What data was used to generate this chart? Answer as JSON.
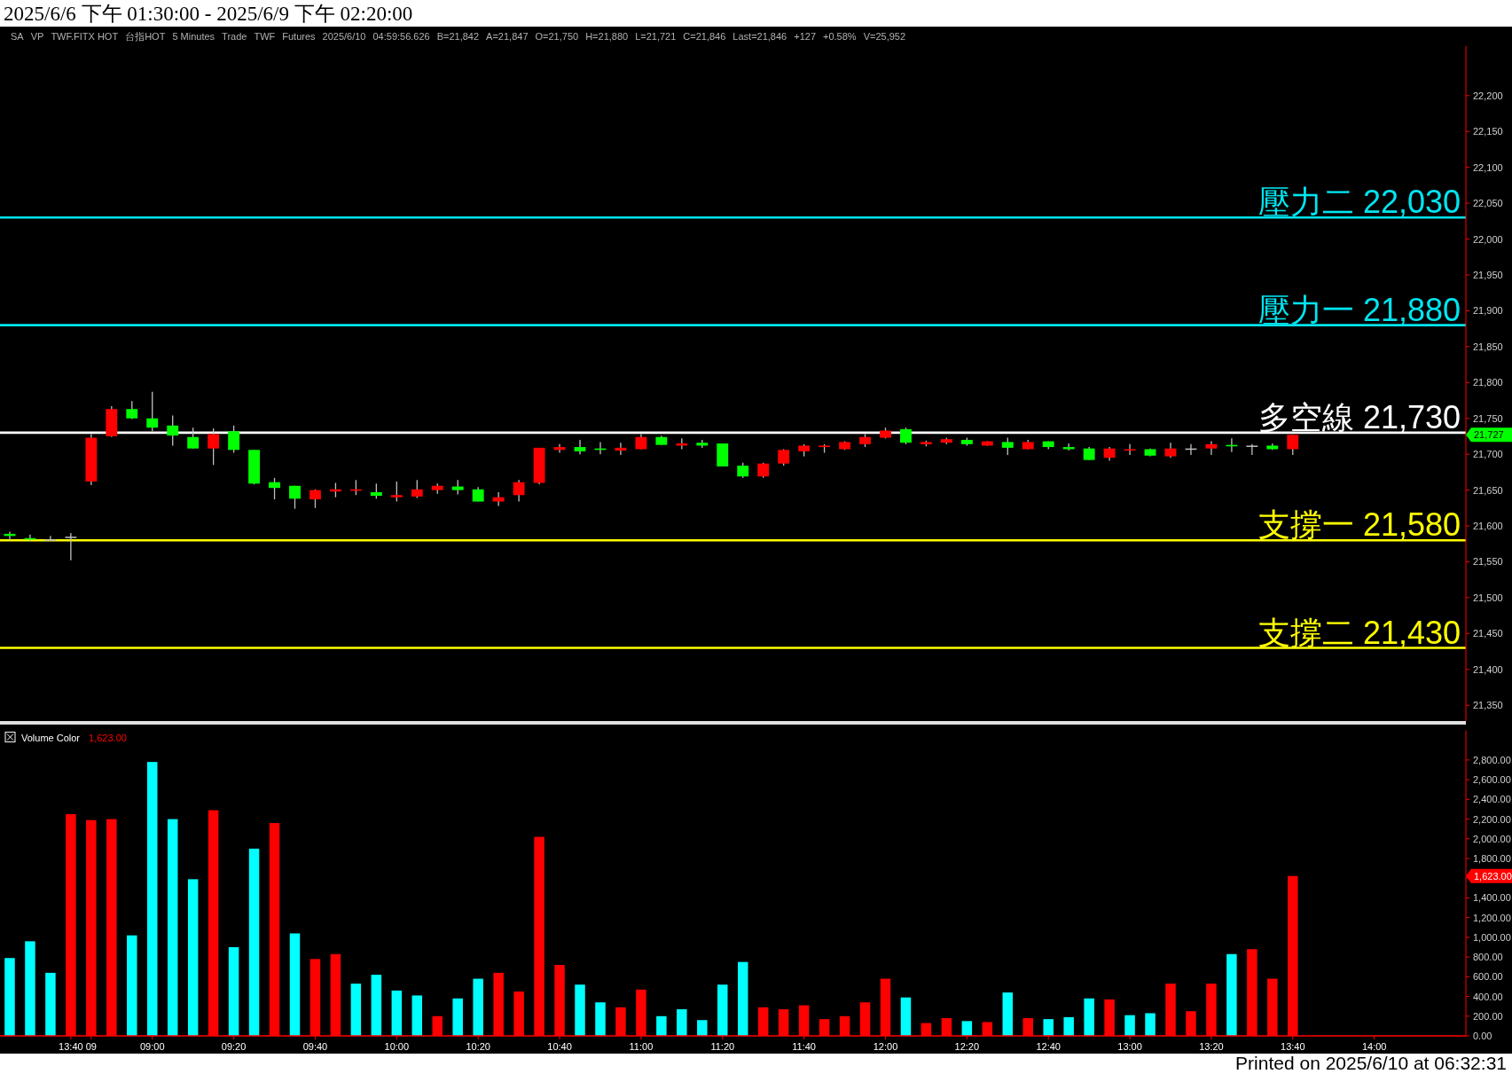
{
  "chart_data": [
    {
      "type": "candlestick",
      "title": "2025/6/6 下午 01:30:00 - 2025/6/9 下午 02:20:00",
      "annotations": [
        "SA",
        "VP",
        "TWF.FITX HOT",
        "台指HOT",
        "5 Minutes",
        "Trade",
        "TWF",
        "Futures",
        "2025/6/10",
        "04:59:56.626",
        "B=21,842",
        "A=21,847",
        "O=21,750",
        "H=21,880",
        "L=21,721",
        "C=21,846",
        "Last=21,846",
        "+127",
        "+0.58%",
        "V=25,952",
        "21,727"
      ],
      "categories": [
        null,
        null,
        null,
        null,
        null,
        null,
        null,
        null,
        null,
        null,
        null,
        null,
        null,
        null,
        null,
        null,
        null,
        null,
        null,
        null,
        null,
        null,
        null,
        null,
        null,
        null,
        null,
        null,
        null,
        null,
        null,
        null,
        null,
        null,
        null,
        null,
        null,
        null,
        null,
        null,
        null,
        null,
        null,
        null,
        null,
        null,
        null,
        null,
        null,
        null,
        null,
        null,
        null,
        null,
        null,
        null,
        null,
        null,
        null,
        null,
        null,
        null,
        null,
        null,
        null,
        null,
        null,
        null,
        null,
        null,
        null,
        null
      ],
      "ohlc": [
        [
          21589,
          21592,
          21580,
          21586
        ],
        [
          21583,
          21588,
          21579,
          21581
        ],
        [
          21581,
          21586,
          21580,
          21581
        ],
        [
          21585,
          21590,
          21552,
          21585
        ],
        [
          21662,
          21728,
          21657,
          21723
        ],
        [
          21725,
          21767,
          21724,
          21763
        ],
        [
          21763,
          21774,
          21749,
          21750
        ],
        [
          21750,
          21787,
          21732,
          21737
        ],
        [
          21740,
          21754,
          21712,
          21726
        ],
        [
          21724,
          21737,
          21708,
          21708
        ],
        [
          21708,
          21736,
          21685,
          21728
        ],
        [
          21732,
          21740,
          21702,
          21706
        ],
        [
          21706,
          21706,
          21658,
          21659
        ],
        [
          21661,
          21667,
          21637,
          21653
        ],
        [
          21656,
          21656,
          21624,
          21638
        ],
        [
          21637,
          21651,
          21625,
          21650
        ],
        [
          21648,
          21660,
          21640,
          21651
        ],
        [
          21649,
          21664,
          21643,
          21651
        ],
        [
          21647,
          21659,
          21638,
          21642
        ],
        [
          21640,
          21662,
          21634,
          21643
        ],
        [
          21641,
          21664,
          21639,
          21651
        ],
        [
          21650,
          21659,
          21645,
          21656
        ],
        [
          21655,
          21664,
          21644,
          21650
        ],
        [
          21651,
          21654,
          21634,
          21634
        ],
        [
          21634,
          21647,
          21628,
          21640
        ],
        [
          21643,
          21664,
          21634,
          21661
        ],
        [
          21660,
          21709,
          21658,
          21709
        ],
        [
          21706,
          21714,
          21702,
          21710
        ],
        [
          21710,
          21720,
          21700,
          21704
        ],
        [
          21708,
          21717,
          21700,
          21706
        ],
        [
          21705,
          21716,
          21699,
          21709
        ],
        [
          21707,
          21728,
          21707,
          21724
        ],
        [
          21724,
          21726,
          21713,
          21713
        ],
        [
          21712,
          21722,
          21707,
          21715
        ],
        [
          21716,
          21720,
          21709,
          21712
        ],
        [
          21715,
          21715,
          21683,
          21683
        ],
        [
          21684,
          21688,
          21667,
          21669
        ],
        [
          21669,
          21688,
          21667,
          21687
        ],
        [
          21687,
          21707,
          21684,
          21706
        ],
        [
          21704,
          21714,
          21697,
          21712
        ],
        [
          21710,
          21714,
          21702,
          21712
        ],
        [
          21707,
          21718,
          21706,
          21717
        ],
        [
          21714,
          21728,
          21710,
          21724
        ],
        [
          21723,
          21737,
          21722,
          21733
        ],
        [
          21735,
          21737,
          21714,
          21716
        ],
        [
          21714,
          21719,
          21711,
          21717
        ],
        [
          21716,
          21723,
          21714,
          21721
        ],
        [
          21720,
          21723,
          21712,
          21714
        ],
        [
          21712,
          21718,
          21712,
          21718
        ],
        [
          21717,
          21723,
          21699,
          21709
        ],
        [
          21707,
          21720,
          21707,
          21717
        ],
        [
          21718,
          21718,
          21707,
          21710
        ],
        [
          21710,
          21715,
          21705,
          21707
        ],
        [
          21708,
          21710,
          21692,
          21692
        ],
        [
          21695,
          21710,
          21691,
          21708
        ],
        [
          21705,
          21714,
          21699,
          21707
        ],
        [
          21707,
          21708,
          21697,
          21698
        ],
        [
          21697,
          21716,
          21695,
          21708
        ],
        [
          21708,
          21714,
          21699,
          21708
        ],
        [
          21708,
          21718,
          21699,
          21714
        ],
        [
          21713,
          21722,
          21703,
          21711
        ],
        [
          21712,
          21714,
          21699,
          21712
        ],
        [
          21712,
          21715,
          21706,
          21707
        ],
        [
          21707,
          21727,
          21699,
          21727
        ],
        null,
        null,
        null,
        null,
        null,
        null,
        null,
        null
      ],
      "colors": [
        "#00ff00",
        "#00ff00",
        "#c0c0c0",
        "#c0c0c0",
        "#ff0000",
        "#ff0000",
        "#00ff00",
        "#00ff00",
        "#00ff00",
        "#00ff00",
        "#ff0000",
        "#00ff00",
        "#00ff00",
        "#00ff00",
        "#00ff00",
        "#ff0000",
        "#ff0000",
        "#ff0000",
        "#00ff00",
        "#ff0000",
        "#ff0000",
        "#ff0000",
        "#00ff00",
        "#00ff00",
        "#ff0000",
        "#ff0000",
        "#ff0000",
        "#ff0000",
        "#00ff00",
        "#00ff00",
        "#ff0000",
        "#ff0000",
        "#00ff00",
        "#ff0000",
        "#00ff00",
        "#00ff00",
        "#00ff00",
        "#ff0000",
        "#ff0000",
        "#ff0000",
        "#ff0000",
        "#ff0000",
        "#ff0000",
        "#ff0000",
        "#00ff00",
        "#ff0000",
        "#ff0000",
        "#00ff00",
        "#ff0000",
        "#00ff00",
        "#ff0000",
        "#00ff00",
        "#00ff00",
        "#00ff00",
        "#ff0000",
        "#ff0000",
        "#00ff00",
        "#ff0000",
        "#c0c0c0",
        "#ff0000",
        "#00ff00",
        "#c0c0c0",
        "#00ff00",
        "#ff0000",
        null,
        null,
        null,
        null,
        null,
        null,
        null,
        null
      ],
      "ylim": [
        21328,
        22269
      ],
      "yticks": [
        {
          "value": 21350,
          "label": "21,350"
        },
        {
          "value": 21400,
          "label": "21,400"
        },
        {
          "value": 21450,
          "label": "21,450"
        },
        {
          "value": 21500,
          "label": "21,500"
        },
        {
          "value": 21550,
          "label": "21,550"
        },
        {
          "value": 21600,
          "label": "21,600"
        },
        {
          "value": 21650,
          "label": "21,650"
        },
        {
          "value": 21700,
          "label": "21,700"
        },
        {
          "value": 21750,
          "label": "21,750"
        },
        {
          "value": 21800,
          "label": "21,800"
        },
        {
          "value": 21850,
          "label": "21,850"
        },
        {
          "value": 21900,
          "label": "21,900"
        },
        {
          "value": 21950,
          "label": "21,950"
        },
        {
          "value": 22000,
          "label": "22,000"
        },
        {
          "value": 22050,
          "label": "22,050"
        },
        {
          "value": 22100,
          "label": "22,100"
        },
        {
          "value": 22150,
          "label": "22,150"
        },
        {
          "value": 22200,
          "label": "22,200"
        }
      ],
      "ref_lines": [
        {
          "axis": "y",
          "value": 22030,
          "label": "壓力二 22,030",
          "color": "#00e5f0"
        },
        {
          "axis": "y",
          "value": 21880,
          "label": "壓力一 21,880",
          "color": "#00e5f0"
        },
        {
          "axis": "y",
          "value": 21730,
          "label": "多空線 21,730",
          "color": "#ffffff"
        },
        {
          "axis": "y",
          "value": 21580,
          "label": "支撐一 21,580",
          "color": "#ffff00"
        },
        {
          "axis": "y",
          "value": 21430,
          "label": "支撐二 21,430",
          "color": "#ffff00"
        }
      ],
      "tick_labels": "y"
    },
    {
      "type": "bar",
      "annotations": [
        "Volume Color",
        "1,623.00",
        "1,623.00",
        "Printed on 2025/6/10 at 06:32:31"
      ],
      "categories": [
        null,
        null,
        null,
        "13:40",
        "09",
        null,
        null,
        "09:00",
        null,
        null,
        null,
        "09:20",
        null,
        null,
        null,
        "09:40",
        null,
        null,
        null,
        "10:00",
        null,
        null,
        null,
        "10:20",
        null,
        null,
        null,
        "10:40",
        null,
        null,
        null,
        "11:00",
        null,
        null,
        null,
        "11:20",
        null,
        null,
        null,
        "11:40",
        null,
        null,
        null,
        "12:00",
        null,
        null,
        null,
        "12:20",
        null,
        null,
        null,
        "12:40",
        null,
        null,
        null,
        "13:00",
        null,
        null,
        null,
        "13:20",
        null,
        null,
        null,
        "13:40",
        null,
        null,
        null,
        "14:00",
        null,
        null,
        null,
        null
      ],
      "values": [
        790,
        960,
        640,
        2250,
        2190,
        2200,
        1020,
        2780,
        2200,
        1590,
        2290,
        900,
        1900,
        2160,
        1040,
        780,
        830,
        530,
        620,
        460,
        410,
        200,
        380,
        580,
        640,
        450,
        2020,
        720,
        520,
        340,
        290,
        470,
        200,
        270,
        160,
        520,
        750,
        290,
        270,
        310,
        170,
        200,
        340,
        580,
        390,
        130,
        180,
        150,
        140,
        440,
        180,
        170,
        190,
        380,
        370,
        210,
        230,
        530,
        250,
        530,
        830,
        880,
        580,
        1623,
        null,
        null,
        null,
        null,
        null,
        null,
        null,
        null
      ],
      "colors": [
        "#00ffff",
        "#00ffff",
        "#00ffff",
        "#ff0000",
        "#ff0000",
        "#ff0000",
        "#00ffff",
        "#00ffff",
        "#00ffff",
        "#00ffff",
        "#ff0000",
        "#00ffff",
        "#00ffff",
        "#ff0000",
        "#00ffff",
        "#ff0000",
        "#ff0000",
        "#00ffff",
        "#00ffff",
        "#00ffff",
        "#00ffff",
        "#ff0000",
        "#00ffff",
        "#00ffff",
        "#ff0000",
        "#ff0000",
        "#ff0000",
        "#ff0000",
        "#00ffff",
        "#00ffff",
        "#ff0000",
        "#ff0000",
        "#00ffff",
        "#00ffff",
        "#00ffff",
        "#00ffff",
        "#00ffff",
        "#ff0000",
        "#ff0000",
        "#ff0000",
        "#ff0000",
        "#ff0000",
        "#ff0000",
        "#ff0000",
        "#00ffff",
        "#ff0000",
        "#ff0000",
        "#00ffff",
        "#ff0000",
        "#00ffff",
        "#ff0000",
        "#00ffff",
        "#00ffff",
        "#00ffff",
        "#ff0000",
        "#00ffff",
        "#00ffff",
        "#ff0000",
        "#ff0000",
        "#ff0000",
        "#00ffff",
        "#ff0000",
        "#ff0000",
        "#ff0000",
        null,
        null,
        null,
        null,
        null,
        null,
        null,
        null
      ],
      "ylim": [
        0,
        3100
      ],
      "yticks": [
        {
          "value": 0,
          "label": "0.00"
        },
        {
          "value": 200,
          "label": "200.00"
        },
        {
          "value": 400,
          "label": "400.00"
        },
        {
          "value": 600,
          "label": "600.00"
        },
        {
          "value": 800,
          "label": "800.00"
        },
        {
          "value": 1000,
          "label": "1,000.00"
        },
        {
          "value": 1200,
          "label": "1,200.00"
        },
        {
          "value": 1400,
          "label": "1,400.00"
        },
        {
          "value": 1600,
          "label": null
        },
        {
          "value": 1800,
          "label": "1,800.00"
        },
        {
          "value": 2000,
          "label": "2,000.00"
        },
        {
          "value": 2200,
          "label": "2,200.00"
        },
        {
          "value": 2400,
          "label": "2,400.00"
        },
        {
          "value": 2600,
          "label": "2,600.00"
        },
        {
          "value": 2800,
          "label": "2,800.00"
        }
      ]
    }
  ]
}
